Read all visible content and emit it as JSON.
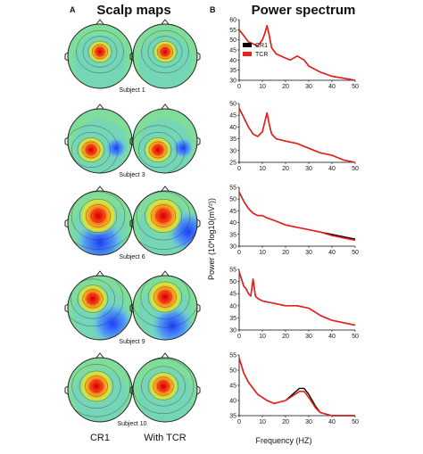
{
  "panel_a": {
    "letter": "A",
    "title": "Scalp maps",
    "subjects": [
      "Subject 1",
      "Subject 3",
      "Subject 6",
      "Subject 9",
      "Subject 10"
    ],
    "column_labels": [
      "CR1",
      "With TCR"
    ]
  },
  "panel_b": {
    "letter": "B",
    "title": "Power spectrum",
    "ylabel": "Power (10*log10(mV²))",
    "xlabel": "Frequency (HZ)",
    "legend": [
      "CR1",
      "TCR"
    ],
    "colors": {
      "CR1": "#000000",
      "TCR": "#e8201c"
    }
  },
  "chart_data": [
    {
      "type": "line",
      "title": "",
      "xlim": [
        0,
        50
      ],
      "ylim": [
        30,
        60
      ],
      "yticks": [
        30,
        35,
        40,
        45,
        50,
        55,
        60
      ],
      "xticks": [
        0,
        10,
        20,
        30,
        40,
        50
      ],
      "series": [
        {
          "name": "CR1",
          "x": [
            0,
            2,
            4,
            6,
            8,
            10,
            11,
            12,
            13,
            14,
            16,
            18,
            20,
            22,
            25,
            28,
            30,
            35,
            40,
            45,
            50
          ],
          "y": [
            55,
            52,
            49,
            48,
            47,
            50,
            53,
            57,
            52,
            46,
            43,
            42,
            41,
            40,
            42,
            40,
            37,
            34,
            32,
            31,
            30
          ]
        },
        {
          "name": "TCR",
          "x": [
            0,
            2,
            4,
            6,
            8,
            10,
            11,
            12,
            13,
            14,
            16,
            18,
            20,
            22,
            25,
            28,
            30,
            35,
            40,
            45,
            50
          ],
          "y": [
            55,
            52,
            49,
            48,
            47,
            50,
            53,
            57,
            52,
            46,
            43,
            42,
            41,
            40,
            42,
            40,
            37,
            34,
            32,
            31,
            30
          ]
        }
      ]
    },
    {
      "type": "line",
      "title": "",
      "xlim": [
        0,
        50
      ],
      "ylim": [
        25,
        50
      ],
      "yticks": [
        25,
        30,
        35,
        40,
        45,
        50
      ],
      "xticks": [
        0,
        10,
        20,
        30,
        40,
        50
      ],
      "series": [
        {
          "name": "CR1",
          "x": [
            0,
            2,
            4,
            6,
            8,
            10,
            11,
            12,
            13,
            14,
            16,
            20,
            25,
            30,
            35,
            40,
            45,
            50
          ],
          "y": [
            48,
            44,
            40,
            37,
            36,
            38,
            42,
            46,
            41,
            37,
            35,
            34,
            33,
            31,
            29,
            28,
            26,
            25
          ]
        },
        {
          "name": "TCR",
          "x": [
            0,
            2,
            4,
            6,
            8,
            10,
            11,
            12,
            13,
            14,
            16,
            20,
            25,
            30,
            35,
            40,
            45,
            50
          ],
          "y": [
            48,
            44,
            40,
            37,
            36,
            38,
            42,
            46,
            41,
            37,
            35,
            34,
            33,
            31,
            29,
            28,
            26,
            25
          ]
        }
      ]
    },
    {
      "type": "line",
      "title": "",
      "xlim": [
        0,
        50
      ],
      "ylim": [
        30,
        55
      ],
      "yticks": [
        30,
        35,
        40,
        45,
        50,
        55
      ],
      "xticks": [
        0,
        10,
        20,
        30,
        40,
        50
      ],
      "series": [
        {
          "name": "CR1",
          "x": [
            0,
            2,
            4,
            6,
            8,
            10,
            12,
            15,
            20,
            25,
            30,
            35,
            40,
            45,
            50
          ],
          "y": [
            53,
            49,
            46,
            44,
            43,
            43,
            42,
            41,
            39,
            38,
            37,
            36,
            35,
            34,
            33
          ]
        },
        {
          "name": "TCR",
          "x": [
            0,
            2,
            4,
            6,
            8,
            10,
            12,
            15,
            20,
            25,
            30,
            35,
            40,
            45,
            50
          ],
          "y": [
            53,
            49,
            46,
            44,
            43,
            43,
            42,
            41,
            39,
            38,
            37,
            36,
            34.5,
            33.5,
            32.5
          ]
        }
      ]
    },
    {
      "type": "line",
      "title": "",
      "xlim": [
        0,
        50
      ],
      "ylim": [
        30,
        55
      ],
      "yticks": [
        30,
        35,
        40,
        45,
        50,
        55
      ],
      "xticks": [
        0,
        10,
        20,
        30,
        40,
        50
      ],
      "series": [
        {
          "name": "CR1",
          "x": [
            0,
            1,
            2,
            3,
            4,
            5,
            6,
            7,
            8,
            10,
            15,
            20,
            25,
            30,
            35,
            40,
            45,
            50
          ],
          "y": [
            54,
            51,
            48,
            47,
            45,
            44,
            51,
            44,
            43,
            42,
            41,
            40,
            40,
            39,
            36,
            34,
            33,
            32
          ]
        },
        {
          "name": "TCR",
          "x": [
            0,
            1,
            2,
            3,
            4,
            5,
            6,
            7,
            8,
            10,
            15,
            20,
            25,
            30,
            35,
            40,
            45,
            50
          ],
          "y": [
            54,
            51,
            48,
            47,
            45,
            44,
            51,
            44,
            43,
            42,
            41,
            40,
            40,
            39,
            36,
            34,
            33,
            32
          ]
        }
      ]
    },
    {
      "type": "line",
      "title": "",
      "xlim": [
        0,
        50
      ],
      "ylim": [
        35,
        55
      ],
      "yticks": [
        35,
        40,
        45,
        50,
        55
      ],
      "xticks": [
        0,
        10,
        20,
        30,
        40,
        50
      ],
      "series": [
        {
          "name": "CR1",
          "x": [
            0,
            2,
            4,
            6,
            8,
            10,
            12,
            15,
            20,
            23,
            26,
            28,
            30,
            33,
            35,
            40,
            45,
            50
          ],
          "y": [
            54,
            49,
            46,
            44,
            42,
            41,
            40,
            39,
            40,
            42,
            44,
            44,
            42,
            38,
            36,
            35,
            35,
            35
          ]
        },
        {
          "name": "TCR",
          "x": [
            0,
            2,
            4,
            6,
            8,
            10,
            12,
            15,
            20,
            23,
            26,
            28,
            30,
            33,
            35,
            40,
            45,
            50
          ],
          "y": [
            54,
            49,
            46,
            44,
            42,
            41,
            40,
            39,
            40,
            41.5,
            43,
            43,
            41,
            37.5,
            36,
            35,
            35,
            35
          ]
        }
      ]
    }
  ]
}
